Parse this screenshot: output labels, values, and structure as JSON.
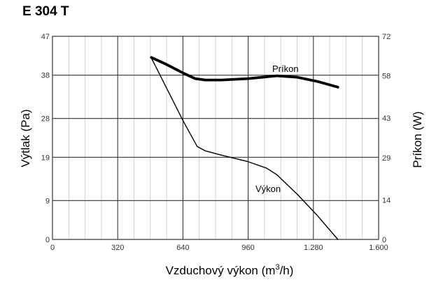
{
  "chart_data": {
    "type": "line",
    "title": "E 304 T",
    "xlabel": "Vzduchový výkon (m",
    "xlabel_sup": "3",
    "xlabel_end": "/h)",
    "ylabel": "Výtlak (Pa)",
    "y2label": "Príkon (W)",
    "xlim": [
      0,
      1600
    ],
    "ylim": [
      0,
      47
    ],
    "y2lim": [
      0,
      72
    ],
    "x_ticks": [
      0,
      320,
      640,
      960,
      1280,
      1600
    ],
    "x_tick_labels": [
      "0",
      "320",
      "640",
      "960",
      "1.280",
      "1.600"
    ],
    "y_ticks": [
      0,
      9,
      19,
      28,
      38,
      47
    ],
    "y_tick_labels": [
      "0",
      "9",
      "19",
      "28",
      "38",
      "47"
    ],
    "y2_ticks": [
      0,
      14,
      29,
      43,
      58,
      72
    ],
    "y2_tick_labels": [
      "0",
      "14",
      "29",
      "43",
      "58",
      "72"
    ],
    "grid": true,
    "series": [
      {
        "name": "Výkon",
        "axis": "left",
        "x": [
          485,
          560,
          640,
          710,
          750,
          830,
          960,
          1050,
          1100,
          1200,
          1300,
          1400
        ],
        "y": [
          42,
          35,
          27.5,
          21.5,
          20.5,
          19.5,
          18,
          16.5,
          15,
          10.5,
          5.5,
          0
        ]
      },
      {
        "name": "Príkon",
        "axis": "right",
        "x": [
          485,
          560,
          640,
          700,
          750,
          830,
          960,
          1100,
          1200,
          1300,
          1400
        ],
        "y": [
          64.5,
          62,
          59,
          57,
          56.5,
          56.5,
          57,
          58,
          57.5,
          56,
          54
        ]
      }
    ]
  }
}
